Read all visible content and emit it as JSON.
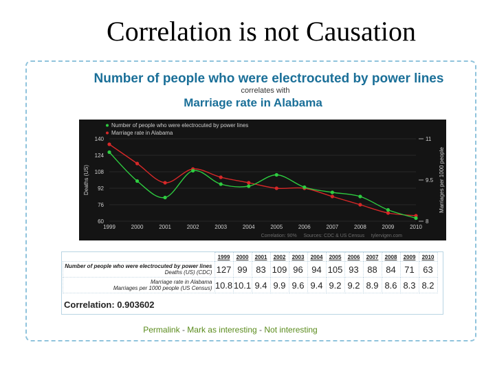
{
  "slide_title": "Correlation is not Causation",
  "header": {
    "line1": "Number of people who were electrocuted by power lines",
    "line2": "correlates with",
    "line3": "Marriage rate in Alabama"
  },
  "chart_data": {
    "type": "line",
    "x": [
      1999,
      2000,
      2001,
      2002,
      2003,
      2004,
      2005,
      2006,
      2007,
      2008,
      2009,
      2010
    ],
    "series": [
      {
        "name": "Number of people who were electrocuted by power lines",
        "axis": "left",
        "color": "#2ecc40",
        "values": [
          127,
          99,
          83,
          109,
          96,
          94,
          105,
          93,
          88,
          84,
          71,
          63
        ]
      },
      {
        "name": "Marriage rate in Alabama",
        "axis": "right",
        "color": "#d62828",
        "values": [
          10.8,
          10.1,
          9.4,
          9.9,
          9.6,
          9.4,
          9.2,
          9.2,
          8.9,
          8.6,
          8.3,
          8.2
        ]
      }
    ],
    "ylabel": "Deaths (US)",
    "y2label": "Marriages per 1000 people",
    "ylim": [
      60,
      140
    ],
    "yticks": [
      60,
      76,
      92,
      108,
      124,
      140
    ],
    "y2lim": [
      8,
      11
    ],
    "y2ticks": [
      8,
      9.5,
      11
    ],
    "xticks": [
      "1999",
      "2000",
      "2001",
      "2002",
      "2003",
      "2004",
      "2005",
      "2006",
      "2007",
      "2008",
      "2009",
      "2010"
    ],
    "footer": "Correlation: 90%     Sources: CDC & US Census     tylervigen.com",
    "legend_position": "top-left",
    "background": "#141414"
  },
  "table": {
    "years": [
      "1999",
      "2000",
      "2001",
      "2002",
      "2003",
      "2004",
      "2005",
      "2006",
      "2007",
      "2008",
      "2009",
      "2010"
    ],
    "rows": [
      {
        "label1": "Number of people who were electrocuted by power lines",
        "label2": "Deaths (US) (CDC)",
        "values": [
          "127",
          "99",
          "83",
          "109",
          "96",
          "94",
          "105",
          "93",
          "88",
          "84",
          "71",
          "63"
        ]
      },
      {
        "label1": "Marriage rate in Alabama",
        "label2": "Marriages per 1000 people (US Census)",
        "values": [
          "10.8",
          "10.1",
          "9.4",
          "9.9",
          "9.6",
          "9.4",
          "9.2",
          "9.2",
          "8.9",
          "8.6",
          "8.3",
          "8.2"
        ]
      }
    ],
    "correlation": "Correlation: 0.903602"
  },
  "links": {
    "permalink": "Permalink",
    "sep": "-",
    "mark": "Mark as interesting",
    "not": "Not interesting"
  }
}
